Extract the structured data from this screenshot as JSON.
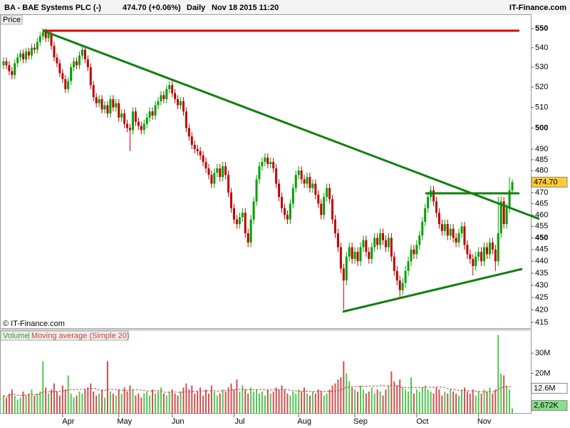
{
  "header": {
    "symbol": "BA - BAE Systems PLC (-)",
    "quote": "474.70 (+0.06%)",
    "period": "Daily",
    "datetime": "Nov 18 2015 11:20",
    "brand": "IT-Finance.com"
  },
  "chart_data": [
    {
      "type": "candlestick",
      "label": "Price",
      "watermark": "© IT-Finance.com",
      "log_scale": true,
      "up_color": "#00a000",
      "down_color": "#c00000",
      "categories": [
        null,
        null,
        null,
        null,
        null,
        null,
        null,
        null,
        null,
        null,
        null,
        null,
        null,
        null,
        null,
        null,
        null,
        null,
        null,
        null,
        null,
        "Apr",
        null,
        null,
        null,
        null,
        null,
        null,
        null,
        null,
        null,
        null,
        null,
        null,
        null,
        null,
        null,
        null,
        null,
        null,
        null,
        "May",
        null,
        null,
        null,
        null,
        null,
        null,
        null,
        null,
        null,
        null,
        null,
        null,
        null,
        null,
        null,
        null,
        null,
        null,
        "Jun",
        null,
        null,
        null,
        null,
        null,
        null,
        null,
        null,
        null,
        null,
        null,
        null,
        null,
        null,
        null,
        null,
        null,
        null,
        null,
        null,
        null,
        "Jul",
        null,
        null,
        null,
        null,
        null,
        null,
        null,
        null,
        null,
        null,
        null,
        null,
        null,
        null,
        null,
        null,
        null,
        null,
        null,
        null,
        null,
        null,
        "Aug",
        null,
        null,
        null,
        null,
        null,
        null,
        null,
        null,
        null,
        null,
        null,
        null,
        null,
        null,
        null,
        null,
        null,
        null,
        null,
        "Sep",
        null,
        null,
        null,
        null,
        null,
        null,
        null,
        null,
        null,
        null,
        null,
        null,
        null,
        null,
        null,
        null,
        null,
        null,
        null,
        null,
        null,
        "Oct",
        null,
        null,
        null,
        null,
        null,
        null,
        null,
        null,
        null,
        null,
        null,
        null,
        null,
        null,
        null,
        null,
        null,
        null,
        null,
        null,
        null,
        "Nov",
        null,
        null,
        null,
        null,
        null,
        null,
        null,
        null,
        null,
        null,
        null,
        null
      ],
      "open": [
        531,
        533,
        531,
        528,
        526,
        532,
        535,
        537,
        534,
        538,
        536,
        540,
        539,
        543,
        546,
        548,
        545,
        547,
        541,
        535,
        532,
        527,
        524,
        519,
        523,
        530,
        533,
        531,
        536,
        539,
        534,
        530,
        521,
        515,
        512,
        514,
        509,
        511,
        507,
        514,
        510,
        512,
        505,
        507,
        502,
        500,
        499,
        508,
        503,
        501,
        499,
        502,
        505,
        508,
        506,
        511,
        513,
        516,
        514,
        519,
        521,
        517,
        514,
        511,
        513,
        508,
        500,
        496,
        492,
        490,
        489,
        487,
        484,
        481,
        478,
        474,
        479,
        481,
        477,
        482,
        478,
        470,
        463,
        458,
        456,
        459,
        461,
        452,
        448,
        458,
        466,
        476,
        482,
        484,
        486,
        483,
        484,
        481,
        474,
        468,
        463,
        460,
        458,
        465,
        472,
        478,
        480,
        476,
        474,
        477,
        472,
        474,
        469,
        465,
        460,
        468,
        472,
        467,
        458,
        452,
        446,
        437,
        432,
        442,
        446,
        441,
        444,
        440,
        446,
        449,
        444,
        441,
        446,
        450,
        447,
        452,
        449,
        446,
        450,
        442,
        436,
        432,
        428,
        431,
        436,
        440,
        445,
        443,
        447,
        451,
        457,
        463,
        468,
        471,
        466,
        461,
        456,
        453,
        456,
        451,
        454,
        450,
        448,
        452,
        455,
        447,
        443,
        441,
        438,
        442,
        444,
        440,
        446,
        443,
        448,
        445,
        440,
        452,
        466,
        456,
        463,
        471
      ],
      "high": [
        535,
        535,
        533,
        530,
        534,
        537,
        539,
        539,
        540,
        540,
        542,
        542,
        545,
        548,
        550,
        550,
        549,
        549,
        543,
        537,
        534,
        529,
        526,
        525,
        532,
        535,
        535,
        538,
        541,
        541,
        536,
        532,
        523,
        517,
        516,
        516,
        513,
        513,
        516,
        516,
        514,
        514,
        509,
        509,
        504,
        502,
        510,
        510,
        505,
        503,
        504,
        507,
        510,
        510,
        513,
        515,
        518,
        518,
        521,
        523,
        523,
        519,
        516,
        515,
        515,
        510,
        502,
        498,
        494,
        492,
        491,
        489,
        486,
        483,
        480,
        481,
        483,
        483,
        484,
        484,
        480,
        472,
        465,
        460,
        461,
        463,
        463,
        454,
        460,
        468,
        478,
        484,
        486,
        488,
        488,
        486,
        486,
        483,
        476,
        470,
        465,
        462,
        467,
        474,
        480,
        482,
        482,
        478,
        479,
        479,
        476,
        476,
        471,
        467,
        470,
        474,
        474,
        469,
        460,
        454,
        448,
        439,
        444,
        448,
        448,
        446,
        446,
        448,
        451,
        451,
        446,
        448,
        452,
        452,
        454,
        454,
        451,
        452,
        452,
        444,
        438,
        434,
        433,
        438,
        442,
        447,
        447,
        449,
        453,
        459,
        465,
        470,
        473,
        473,
        468,
        463,
        458,
        458,
        458,
        456,
        456,
        452,
        454,
        457,
        457,
        449,
        445,
        443,
        444,
        446,
        446,
        448,
        448,
        450,
        450,
        447,
        468,
        468,
        468,
        465,
        477,
        476
      ],
      "low": [
        529,
        529,
        526,
        524,
        524,
        530,
        533,
        532,
        532,
        534,
        534,
        537,
        537,
        541,
        544,
        543,
        543,
        539,
        533,
        530,
        525,
        522,
        517,
        517,
        521,
        528,
        529,
        529,
        534,
        532,
        528,
        519,
        513,
        510,
        510,
        507,
        507,
        505,
        505,
        508,
        508,
        503,
        503,
        500,
        498,
        489,
        497,
        501,
        499,
        497,
        497,
        500,
        503,
        504,
        504,
        509,
        511,
        512,
        512,
        517,
        515,
        512,
        509,
        509,
        506,
        498,
        494,
        490,
        488,
        487,
        485,
        482,
        479,
        476,
        472,
        472,
        477,
        475,
        475,
        476,
        468,
        461,
        456,
        454,
        454,
        457,
        450,
        446,
        446,
        456,
        464,
        474,
        480,
        482,
        481,
        481,
        479,
        472,
        466,
        461,
        458,
        456,
        456,
        463,
        470,
        476,
        474,
        472,
        472,
        470,
        470,
        467,
        463,
        458,
        458,
        466,
        465,
        456,
        450,
        444,
        435,
        420,
        430,
        440,
        439,
        439,
        438,
        438,
        444,
        442,
        439,
        439,
        444,
        445,
        445,
        447,
        444,
        444,
        440,
        434,
        430,
        425,
        426,
        429,
        434,
        438,
        441,
        441,
        445,
        449,
        455,
        461,
        466,
        464,
        459,
        454,
        451,
        451,
        449,
        449,
        448,
        446,
        446,
        450,
        445,
        441,
        439,
        434,
        436,
        440,
        438,
        438,
        441,
        441,
        443,
        436,
        438,
        450,
        454,
        454,
        461,
        470
      ],
      "close": [
        533,
        531,
        528,
        526,
        532,
        535,
        537,
        534,
        538,
        536,
        540,
        539,
        543,
        546,
        548,
        545,
        547,
        541,
        535,
        532,
        527,
        524,
        519,
        523,
        530,
        533,
        531,
        536,
        539,
        534,
        530,
        521,
        515,
        512,
        514,
        509,
        511,
        507,
        514,
        510,
        512,
        505,
        507,
        502,
        500,
        499,
        508,
        503,
        501,
        499,
        502,
        505,
        508,
        506,
        511,
        513,
        516,
        514,
        519,
        521,
        517,
        514,
        511,
        513,
        508,
        500,
        496,
        492,
        490,
        489,
        487,
        484,
        481,
        478,
        474,
        479,
        481,
        477,
        482,
        478,
        470,
        463,
        458,
        456,
        459,
        461,
        452,
        448,
        458,
        466,
        476,
        482,
        484,
        486,
        483,
        484,
        481,
        474,
        468,
        463,
        460,
        458,
        465,
        472,
        478,
        480,
        476,
        474,
        477,
        472,
        474,
        469,
        465,
        460,
        468,
        472,
        467,
        458,
        452,
        446,
        437,
        432,
        442,
        446,
        441,
        444,
        440,
        446,
        449,
        444,
        441,
        446,
        450,
        447,
        452,
        449,
        446,
        450,
        442,
        436,
        432,
        428,
        431,
        436,
        440,
        445,
        443,
        447,
        451,
        457,
        463,
        468,
        471,
        466,
        461,
        456,
        453,
        456,
        451,
        454,
        450,
        448,
        452,
        455,
        447,
        443,
        441,
        438,
        442,
        444,
        440,
        446,
        443,
        448,
        445,
        440,
        452,
        466,
        456,
        463,
        471,
        474.7
      ],
      "current_price": {
        "value": 474.7,
        "label": "474.70"
      },
      "ylim": [
        412.7,
        557.6
      ],
      "yticks": [
        550,
        540,
        530,
        520,
        510,
        500,
        490,
        485,
        480,
        470,
        465,
        460,
        455,
        450,
        445,
        440,
        435,
        430,
        425,
        420,
        415
      ]
    },
    {
      "type": "bar",
      "label": "Volume",
      "ma_label": "Moving average (Simple 20)",
      "ma_period": 20,
      "ma_color": "#d04040",
      "values": [
        9,
        8,
        10,
        12,
        9,
        7,
        8,
        11,
        9,
        10,
        12,
        9,
        10,
        11,
        26,
        13,
        10,
        12,
        15,
        11,
        9,
        14,
        12,
        19,
        10,
        8,
        9,
        11,
        10,
        12,
        13,
        15,
        11,
        9,
        10,
        12,
        8,
        26,
        11,
        10,
        9,
        12,
        10,
        13,
        11,
        14,
        12,
        9,
        10,
        8,
        10,
        11,
        9,
        12,
        10,
        11,
        13,
        10,
        9,
        11,
        12,
        10,
        9,
        11,
        13,
        15,
        12,
        14,
        10,
        11,
        13,
        9,
        12,
        10,
        14,
        11,
        9,
        10,
        12,
        11,
        13,
        15,
        12,
        17,
        11,
        14,
        12,
        10,
        13,
        11,
        12,
        10,
        11,
        9,
        12,
        10,
        11,
        13,
        12,
        14,
        12,
        10,
        9,
        11,
        10,
        12,
        11,
        13,
        10,
        9,
        11,
        10,
        12,
        11,
        9,
        10,
        12,
        14,
        15,
        17,
        18,
        26,
        20,
        16,
        13,
        12,
        11,
        14,
        12,
        10,
        11,
        13,
        10,
        12,
        11,
        9,
        12,
        14,
        21,
        16,
        14,
        17,
        13,
        12,
        11,
        18,
        10,
        12,
        11,
        13,
        14,
        12,
        11,
        10,
        13,
        12,
        9,
        11,
        10,
        12,
        11,
        10,
        9,
        12,
        13,
        11,
        10,
        12,
        9,
        11,
        10,
        12,
        11,
        13,
        10,
        12,
        39,
        20,
        19,
        14,
        12,
        2.672
      ],
      "current_volume": {
        "value": 2.672,
        "label": "2,672K"
      },
      "current_ma": {
        "value": 12.6,
        "label": "12.6M"
      },
      "ylim": [
        0,
        41
      ],
      "yticks": [
        {
          "value": 30,
          "label": "30M"
        },
        {
          "value": 20,
          "label": "20M"
        }
      ]
    }
  ]
}
